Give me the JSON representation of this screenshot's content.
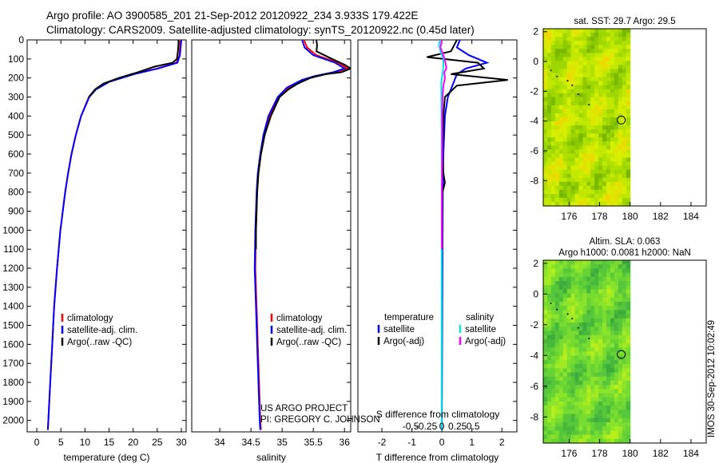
{
  "header": {
    "line1": "Argo profile: AO 3900585_201 21-Sep-2012 20120922_234 3.933S 179.422E",
    "line2": "Climatology: CARS2009. Satellite-adjusted climatology: synTS_20120922.nc (0.45d later)"
  },
  "colors": {
    "climatology": "#ff0000",
    "satellite": "#0000ff",
    "argo": "#000000",
    "sal_satellite": "#00e5e5",
    "sal_argo": "#ff00ff"
  },
  "chart_data": [
    {
      "type": "line",
      "name": "temperature",
      "xlabel": "temperature (deg C)",
      "xlim": [
        -2,
        31
      ],
      "ylim": [
        2060,
        0
      ],
      "xticks": [
        "0",
        "5",
        "10",
        "15",
        "20",
        "25",
        "30"
      ],
      "yticks": [
        "0",
        "100",
        "200",
        "300",
        "400",
        "500",
        "600",
        "700",
        "800",
        "900",
        "1000",
        "1100",
        "1200",
        "1300",
        "1400",
        "1500",
        "1600",
        "1700",
        "1800",
        "1900",
        "2000"
      ],
      "legend": [
        "climatology",
        "satellite-adj. clim.",
        "Argo(..raw -QC)"
      ],
      "series": [
        {
          "name": "climatology",
          "depth": [
            0,
            80,
            120,
            150,
            180,
            220,
            260,
            300,
            400,
            500,
            600,
            700,
            800,
            1000,
            1200,
            1400,
            1600,
            1800,
            2000,
            2050
          ],
          "values": [
            29.8,
            29.6,
            29.0,
            25,
            20,
            15,
            12.2,
            10.8,
            9.2,
            8.1,
            7.2,
            6.5,
            5.9,
            4.9,
            4.2,
            3.6,
            3.2,
            2.8,
            2.4,
            2.3
          ]
        },
        {
          "name": "satellite-adj. clim.",
          "depth": [
            0,
            80,
            120,
            150,
            180,
            220,
            260,
            300,
            400,
            500,
            600,
            700,
            800,
            1000,
            1200,
            1400,
            1600,
            1800,
            2000,
            2050
          ],
          "values": [
            30.0,
            29.7,
            29.2,
            25.2,
            20.2,
            15.1,
            12.3,
            10.9,
            9.2,
            8.1,
            7.2,
            6.5,
            5.9,
            4.9,
            4.2,
            3.6,
            3.2,
            2.8,
            2.4,
            2.3
          ]
        },
        {
          "name": "Argo(..raw -QC)",
          "depth": [
            0,
            20,
            60,
            100,
            120,
            140,
            170,
            200,
            230,
            260,
            300
          ],
          "values": [
            29.4,
            29.4,
            29.3,
            29.1,
            28.2,
            24.5,
            21.0,
            17.0,
            13.8,
            12.1,
            10.8
          ]
        }
      ]
    },
    {
      "type": "line",
      "name": "salinity",
      "xlabel": "salinity",
      "xlim": [
        33.55,
        36.1
      ],
      "ylim": [
        2060,
        0
      ],
      "xticks": [
        "34",
        "34.5",
        "35",
        "35.5",
        "36"
      ],
      "legend": [
        "climatology",
        "satellite-adj. clim.",
        "Argo(..raw -QC)"
      ],
      "series": [
        {
          "name": "climatology",
          "depth": [
            0,
            40,
            80,
            120,
            150,
            170,
            190,
            210,
            250,
            300,
            400,
            500,
            600,
            700,
            800,
            1000,
            1200,
            1400,
            1600,
            1800,
            2000,
            2050
          ],
          "values": [
            35.35,
            35.4,
            35.55,
            35.9,
            36.05,
            35.85,
            35.55,
            35.35,
            35.1,
            34.95,
            34.8,
            34.72,
            34.66,
            34.62,
            34.6,
            34.58,
            34.57,
            34.59,
            34.61,
            34.63,
            34.65,
            34.66
          ]
        },
        {
          "name": "satellite-adj. clim.",
          "depth": [
            0,
            40,
            80,
            120,
            150,
            170,
            190,
            210,
            250,
            300,
            400,
            500,
            600,
            700,
            800,
            1000,
            1200,
            1400,
            1600,
            1800,
            2000,
            2050
          ],
          "values": [
            35.32,
            35.36,
            35.5,
            35.85,
            36.0,
            35.82,
            35.52,
            35.32,
            35.08,
            34.93,
            34.78,
            34.7,
            34.65,
            34.61,
            34.59,
            34.57,
            34.56,
            34.58,
            34.6,
            34.62,
            34.64,
            34.65
          ]
        },
        {
          "name": "Argo(..raw -QC)",
          "depth": [
            0,
            30,
            60,
            100,
            130,
            150,
            170,
            180,
            200,
            230,
            260,
            300,
            400,
            500,
            600,
            700,
            800,
            900,
            1000,
            1100
          ],
          "values": [
            35.55,
            35.56,
            35.55,
            35.8,
            36.0,
            36.1,
            35.95,
            35.7,
            35.45,
            35.25,
            35.1,
            34.96,
            34.82,
            34.72,
            34.66,
            34.62,
            34.6,
            34.59,
            34.58,
            34.58
          ]
        }
      ]
    },
    {
      "type": "line",
      "name": "difference",
      "xlabel": "T difference from climatology",
      "top_axis_label": "S difference from climatology",
      "xlim": [
        -2.8,
        2.5
      ],
      "ylim": [
        2060,
        0
      ],
      "xticks": [
        "-2",
        "-1",
        "0",
        "1",
        "2"
      ],
      "top_ticks": [
        "-0.5",
        "-0.25",
        "0",
        "0.25",
        "0.5"
      ],
      "legend_titles": [
        "temperature",
        "salinity"
      ],
      "legend": [
        "satellite",
        "Argo(-adj)",
        "satellite",
        "Argo(-adj)"
      ],
      "series": [
        {
          "name": "temperature satellite",
          "depth": [
            0,
            40,
            80,
            120,
            150,
            180,
            220,
            260,
            300,
            400,
            600,
            800,
            1100,
            1500,
            2000,
            2050
          ],
          "values": [
            0.6,
            0.5,
            0.9,
            1.5,
            0.8,
            0.5,
            0.4,
            0.3,
            0.2,
            0.1,
            0.05,
            0.03,
            0.02,
            0.01,
            0.0,
            0.0
          ]
        },
        {
          "name": "temperature Argo(-adj)",
          "depth": [
            0,
            30,
            60,
            90,
            120,
            150,
            180,
            210,
            240,
            270,
            300,
            400,
            600,
            700,
            750,
            800,
            1000,
            1100
          ],
          "values": [
            0.5,
            0.4,
            0.3,
            -0.5,
            1.2,
            1.4,
            0.3,
            2.2,
            0.5,
            0.3,
            0.1,
            0.05,
            0.02,
            0.05,
            0.1,
            0.02,
            0.0,
            0.0
          ]
        },
        {
          "name": "salinity satellite",
          "depth": [
            0,
            20,
            60,
            100,
            140,
            180,
            220,
            260,
            300,
            500,
            800,
            1200,
            1600,
            2000,
            2050
          ],
          "values": [
            -0.05,
            -0.1,
            -0.05,
            0.05,
            0.05,
            0.02,
            -0.02,
            -0.02,
            -0.02,
            -0.01,
            -0.01,
            -0.01,
            -0.01,
            -0.01,
            -0.01
          ]
        },
        {
          "name": "salinity Argo(-adj)",
          "depth": [
            0,
            40,
            80,
            120,
            150,
            170,
            200,
            240,
            280,
            300,
            400,
            600,
            800,
            1000,
            1100
          ],
          "values": [
            0.0,
            -0.05,
            0.05,
            0.12,
            0.15,
            0.08,
            0.1,
            0.05,
            0.03,
            0.02,
            0.01,
            0.01,
            0.0,
            0.0,
            0.0
          ]
        }
      ]
    }
  ],
  "maps": {
    "sst": {
      "title": "sat. SST: 29.7  Argo: 29.5",
      "xticks": [
        "176",
        "178",
        "180",
        "182",
        "184"
      ],
      "yticks": [
        "2",
        "0",
        "-2",
        "-4",
        "-6",
        "-8"
      ],
      "argo_lon": 179.422,
      "argo_lat": -3.933
    },
    "sla": {
      "title1": "Altim. SLA: 0.063",
      "title2": "Argo h1000: 0.0081 h2000: NaN",
      "xticks": [
        "176",
        "178",
        "180",
        "182",
        "184"
      ],
      "yticks": [
        "2",
        "0",
        "-2",
        "-4",
        "-6",
        "-8"
      ],
      "argo_lon": 179.422,
      "argo_lat": -3.933
    }
  },
  "annotations": {
    "project": "US ARGO PROJECT",
    "pi": "PI: GREGORY C. JOHNSON",
    "stamp": "IMOS 30-Sep-2012 10:02:49"
  }
}
